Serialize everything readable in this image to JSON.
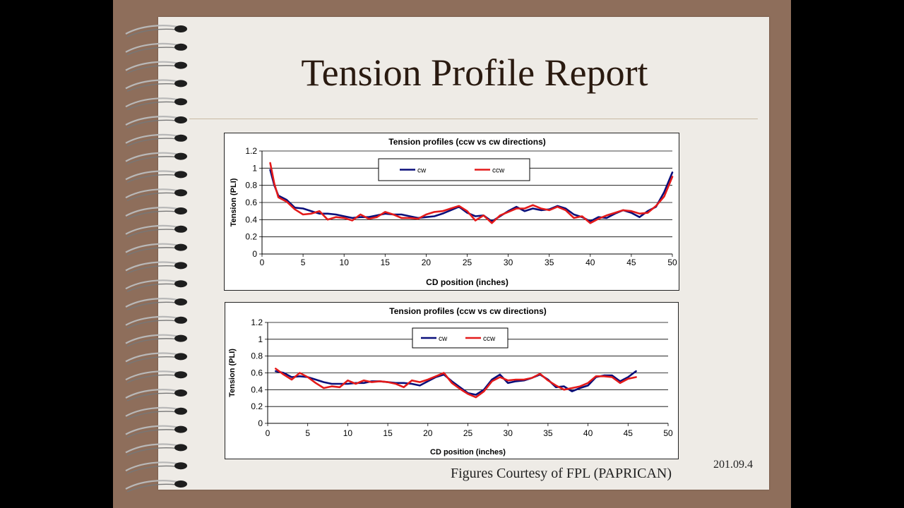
{
  "slide": {
    "title": "Tension Profile Report",
    "courtesy": "Figures Courtesy of FPL (PAPRICAN)",
    "date": "201.09.4"
  },
  "colors": {
    "cw": "#0a0f7a",
    "ccw": "#e31a1a",
    "frame": "#8e6e5b",
    "paper": "#eeebe6"
  },
  "chart_data": [
    {
      "type": "line",
      "title": "Tension profiles (ccw vs cw directions)",
      "xlabel": "CD position (inches)",
      "ylabel": "Tension (PLI)",
      "xlim": [
        0,
        50
      ],
      "ylim": [
        0,
        1.2
      ],
      "xticks": [
        0,
        5,
        10,
        15,
        20,
        25,
        30,
        35,
        40,
        45,
        50
      ],
      "yticks": [
        0,
        0.2,
        0.4,
        0.6,
        0.8,
        1,
        1.2
      ],
      "grid": "horizontal",
      "legend": "top-center",
      "series": [
        {
          "name": "cw",
          "points": [
            [
              1,
              0.98
            ],
            [
              1.5,
              0.8
            ],
            [
              2,
              0.68
            ],
            [
              3,
              0.63
            ],
            [
              4,
              0.54
            ],
            [
              5,
              0.53
            ],
            [
              6,
              0.5
            ],
            [
              7,
              0.47
            ],
            [
              8,
              0.47
            ],
            [
              9,
              0.46
            ],
            [
              10,
              0.44
            ],
            [
              11,
              0.42
            ],
            [
              12,
              0.43
            ],
            [
              13,
              0.43
            ],
            [
              14,
              0.45
            ],
            [
              15,
              0.47
            ],
            [
              16,
              0.46
            ],
            [
              17,
              0.46
            ],
            [
              18,
              0.44
            ],
            [
              19,
              0.42
            ],
            [
              20,
              0.43
            ],
            [
              21,
              0.44
            ],
            [
              22,
              0.47
            ],
            [
              23,
              0.51
            ],
            [
              24,
              0.55
            ],
            [
              25,
              0.48
            ],
            [
              26,
              0.44
            ],
            [
              27,
              0.45
            ],
            [
              28,
              0.38
            ],
            [
              29,
              0.44
            ],
            [
              30,
              0.5
            ],
            [
              31,
              0.55
            ],
            [
              32,
              0.5
            ],
            [
              33,
              0.53
            ],
            [
              34,
              0.51
            ],
            [
              35,
              0.52
            ],
            [
              36,
              0.56
            ],
            [
              37,
              0.53
            ],
            [
              38,
              0.46
            ],
            [
              39,
              0.43
            ],
            [
              40,
              0.38
            ],
            [
              41,
              0.43
            ],
            [
              42,
              0.42
            ],
            [
              43,
              0.47
            ],
            [
              44,
              0.51
            ],
            [
              45,
              0.48
            ],
            [
              46,
              0.43
            ],
            [
              47,
              0.5
            ],
            [
              48,
              0.55
            ],
            [
              49,
              0.72
            ],
            [
              50,
              0.95
            ]
          ]
        },
        {
          "name": "ccw",
          "points": [
            [
              1,
              1.06
            ],
            [
              1.5,
              0.82
            ],
            [
              2,
              0.66
            ],
            [
              3,
              0.61
            ],
            [
              4,
              0.52
            ],
            [
              5,
              0.46
            ],
            [
              6,
              0.47
            ],
            [
              7,
              0.5
            ],
            [
              8,
              0.4
            ],
            [
              9,
              0.43
            ],
            [
              10,
              0.42
            ],
            [
              11,
              0.39
            ],
            [
              12,
              0.46
            ],
            [
              13,
              0.41
            ],
            [
              14,
              0.43
            ],
            [
              15,
              0.49
            ],
            [
              16,
              0.46
            ],
            [
              17,
              0.42
            ],
            [
              18,
              0.42
            ],
            [
              19,
              0.41
            ],
            [
              20,
              0.46
            ],
            [
              21,
              0.49
            ],
            [
              22,
              0.5
            ],
            [
              23,
              0.53
            ],
            [
              24,
              0.56
            ],
            [
              25,
              0.5
            ],
            [
              26,
              0.39
            ],
            [
              27,
              0.45
            ],
            [
              28,
              0.36
            ],
            [
              29,
              0.45
            ],
            [
              30,
              0.49
            ],
            [
              31,
              0.53
            ],
            [
              32,
              0.53
            ],
            [
              33,
              0.57
            ],
            [
              34,
              0.53
            ],
            [
              35,
              0.51
            ],
            [
              36,
              0.55
            ],
            [
              37,
              0.51
            ],
            [
              38,
              0.42
            ],
            [
              39,
              0.44
            ],
            [
              40,
              0.36
            ],
            [
              41,
              0.41
            ],
            [
              42,
              0.45
            ],
            [
              43,
              0.48
            ],
            [
              44,
              0.51
            ],
            [
              45,
              0.5
            ],
            [
              46,
              0.47
            ],
            [
              47,
              0.48
            ],
            [
              48,
              0.56
            ],
            [
              49,
              0.67
            ],
            [
              50,
              0.9
            ]
          ]
        }
      ]
    },
    {
      "type": "line",
      "title": "Tension profiles (ccw vs cw directions)",
      "xlabel": "CD position (inches)",
      "ylabel": "Tension (PLI)",
      "xlim": [
        0,
        50
      ],
      "ylim": [
        0,
        1.2
      ],
      "xticks": [
        0,
        5,
        10,
        15,
        20,
        25,
        30,
        35,
        40,
        45,
        50
      ],
      "yticks": [
        0,
        0.2,
        0.4,
        0.6,
        0.8,
        1,
        1.2
      ],
      "grid": "horizontal",
      "legend": "top-center",
      "series": [
        {
          "name": "cw",
          "points": [
            [
              1,
              0.62
            ],
            [
              2,
              0.6
            ],
            [
              3,
              0.55
            ],
            [
              4,
              0.56
            ],
            [
              5,
              0.55
            ],
            [
              6,
              0.52
            ],
            [
              7,
              0.49
            ],
            [
              8,
              0.47
            ],
            [
              9,
              0.47
            ],
            [
              10,
              0.47
            ],
            [
              11,
              0.48
            ],
            [
              12,
              0.48
            ],
            [
              13,
              0.5
            ],
            [
              14,
              0.5
            ],
            [
              15,
              0.49
            ],
            [
              16,
              0.48
            ],
            [
              17,
              0.48
            ],
            [
              18,
              0.47
            ],
            [
              19,
              0.45
            ],
            [
              20,
              0.5
            ],
            [
              21,
              0.55
            ],
            [
              22,
              0.58
            ],
            [
              23,
              0.5
            ],
            [
              24,
              0.43
            ],
            [
              25,
              0.36
            ],
            [
              26,
              0.34
            ],
            [
              27,
              0.4
            ],
            [
              28,
              0.52
            ],
            [
              29,
              0.58
            ],
            [
              30,
              0.48
            ],
            [
              31,
              0.5
            ],
            [
              32,
              0.51
            ],
            [
              33,
              0.54
            ],
            [
              34,
              0.58
            ],
            [
              35,
              0.52
            ],
            [
              36,
              0.43
            ],
            [
              37,
              0.44
            ],
            [
              38,
              0.38
            ],
            [
              39,
              0.42
            ],
            [
              40,
              0.45
            ],
            [
              41,
              0.55
            ],
            [
              42,
              0.57
            ],
            [
              43,
              0.57
            ],
            [
              44,
              0.5
            ],
            [
              45,
              0.55
            ],
            [
              46,
              0.62
            ]
          ]
        },
        {
          "name": "ccw",
          "points": [
            [
              1,
              0.65
            ],
            [
              2,
              0.58
            ],
            [
              3,
              0.52
            ],
            [
              4,
              0.6
            ],
            [
              5,
              0.55
            ],
            [
              6,
              0.48
            ],
            [
              7,
              0.42
            ],
            [
              8,
              0.44
            ],
            [
              9,
              0.43
            ],
            [
              10,
              0.51
            ],
            [
              11,
              0.47
            ],
            [
              12,
              0.51
            ],
            [
              13,
              0.49
            ],
            [
              14,
              0.5
            ],
            [
              15,
              0.49
            ],
            [
              16,
              0.47
            ],
            [
              17,
              0.43
            ],
            [
              18,
              0.51
            ],
            [
              19,
              0.49
            ],
            [
              20,
              0.52
            ],
            [
              21,
              0.56
            ],
            [
              22,
              0.6
            ],
            [
              23,
              0.48
            ],
            [
              24,
              0.41
            ],
            [
              25,
              0.35
            ],
            [
              26,
              0.31
            ],
            [
              27,
              0.38
            ],
            [
              28,
              0.5
            ],
            [
              29,
              0.55
            ],
            [
              30,
              0.51
            ],
            [
              31,
              0.52
            ],
            [
              32,
              0.52
            ],
            [
              33,
              0.54
            ],
            [
              34,
              0.59
            ],
            [
              35,
              0.51
            ],
            [
              36,
              0.45
            ],
            [
              37,
              0.4
            ],
            [
              38,
              0.42
            ],
            [
              39,
              0.44
            ],
            [
              40,
              0.48
            ],
            [
              41,
              0.56
            ],
            [
              42,
              0.56
            ],
            [
              43,
              0.55
            ],
            [
              44,
              0.48
            ],
            [
              45,
              0.53
            ],
            [
              46,
              0.55
            ]
          ]
        }
      ]
    }
  ]
}
